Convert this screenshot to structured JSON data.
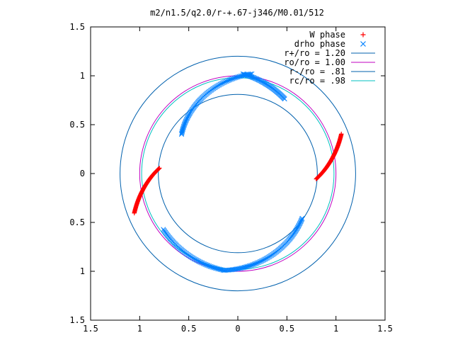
{
  "chart_data": {
    "type": "scatter",
    "title": "m2/n1.5/q2.0/r-+.67-j346/M0.01/512",
    "xlabel": "",
    "ylabel": "",
    "xlim": [
      -1.5,
      1.5
    ],
    "ylim": [
      -1.5,
      1.5
    ],
    "x_ticks": [
      -1.5,
      -1,
      -0.5,
      0,
      0.5,
      1,
      1.5
    ],
    "x_tick_labels": [
      "1.5",
      "1",
      "0.5",
      "0",
      "0.5",
      "1",
      "1.5"
    ],
    "y_ticks": [
      1.5,
      1,
      0.5,
      0,
      -0.5,
      -1,
      -1.5
    ],
    "y_tick_labels": [
      "1.5",
      "1",
      "0.5",
      "0",
      "0.5",
      "1",
      "1.5"
    ],
    "grid": false,
    "legend_position": "top-right",
    "series": [
      {
        "name": "W phase",
        "marker": "plus",
        "color": "#ff0000",
        "arcs": [
          {
            "r_start": 0.8,
            "r_end": 1.13,
            "theta_start_deg": -4,
            "theta_end_deg": 21,
            "points": 90
          },
          {
            "r_start": 0.8,
            "r_end": 1.13,
            "theta_start_deg": 176,
            "theta_end_deg": 201,
            "points": 90
          }
        ]
      },
      {
        "name": "drho phase",
        "marker": "cross",
        "color": "#0080ff",
        "arcs": [
          {
            "r_start": 0.7,
            "r_end": 1.03,
            "theta_start_deg": 145,
            "theta_end_deg": 82,
            "points": 80
          },
          {
            "r_start": 1.02,
            "r_end": 0.9,
            "theta_start_deg": 87,
            "theta_end_deg": 58,
            "points": 50
          },
          {
            "r_start": 0.8,
            "r_end": 1.0,
            "theta_start_deg": -35,
            "theta_end_deg": -98,
            "points": 80
          },
          {
            "r_start": 1.0,
            "r_end": 0.95,
            "theta_start_deg": -98,
            "theta_end_deg": -143,
            "points": 60
          }
        ]
      },
      {
        "name": "r+/ro = 1.20",
        "type": "circle",
        "radius": 1.2,
        "color": "#0060ad"
      },
      {
        "name": "ro/ro = 1.00",
        "type": "circle",
        "radius": 1.0,
        "color": "#c000c0"
      },
      {
        "name": "r-/ro = .81",
        "type": "circle",
        "radius": 0.81,
        "color": "#0060ad"
      },
      {
        "name": "rc/ro = .98",
        "type": "circle",
        "radius": 0.98,
        "color": "#00c0c0"
      }
    ]
  }
}
